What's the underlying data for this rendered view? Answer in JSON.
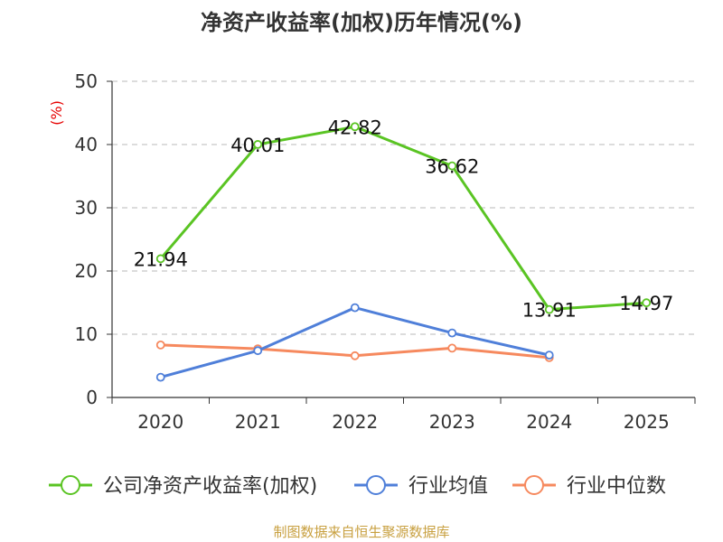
{
  "chart_data": {
    "type": "line",
    "title": "净资产收益率(加权)历年情况(%)",
    "ylabel": "(%)",
    "xlabel": "",
    "categories": [
      "2020",
      "2021",
      "2022",
      "2023",
      "2024",
      "2025"
    ],
    "ylim": [
      0,
      50
    ],
    "yticks": [
      "0",
      "10",
      "20",
      "30",
      "40",
      "50"
    ],
    "grid": true,
    "legend_position": "bottom",
    "series": [
      {
        "name": "公司净资产收益率(加权)",
        "color": "#5ac423",
        "values": [
          21.94,
          40.01,
          42.82,
          36.62,
          13.91,
          14.97
        ],
        "labels": [
          "21.94",
          "40.01",
          "42.82",
          "36.62",
          "13.91",
          "14.97"
        ],
        "show_labels": true
      },
      {
        "name": "行业均值",
        "color": "#4f7fd9",
        "values": [
          3.2,
          7.4,
          14.2,
          10.2,
          6.7,
          null
        ],
        "show_labels": false
      },
      {
        "name": "行业中位数",
        "color": "#f6895e",
        "values": [
          8.3,
          7.7,
          6.6,
          7.8,
          6.3,
          null
        ],
        "show_labels": false
      }
    ],
    "source": "制图数据来自恒生聚源数据库"
  }
}
